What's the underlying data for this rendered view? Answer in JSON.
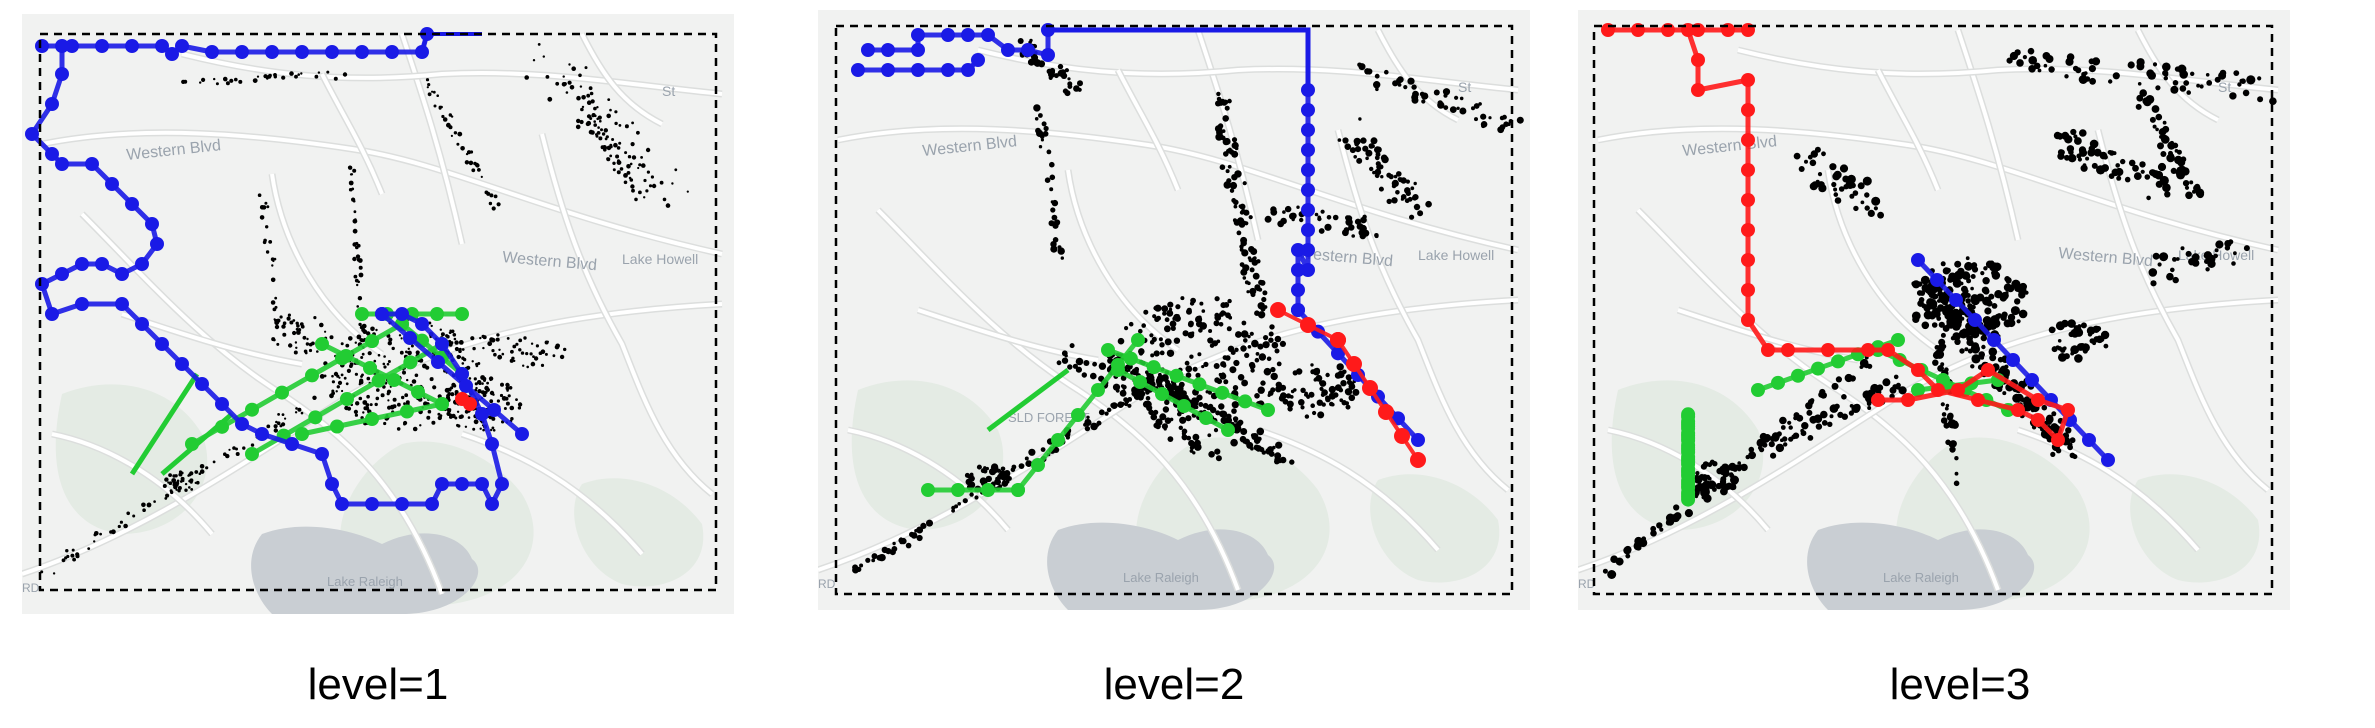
{
  "colors": {
    "map_bg": "#f1f2f1",
    "road": "#ffffff",
    "road_edge": "#dcdedd",
    "park": "#e4ebe4",
    "water": "#c9ced3",
    "map_text": "#9aa3ad",
    "blue": "#1a1ae6",
    "green": "#22cc33",
    "red": "#ff1a1a",
    "points": "#000000",
    "frame": "#000000"
  },
  "panels": [
    {
      "id": "level-1",
      "caption": "level=1",
      "map_labels": {
        "western_blvd": "Western Blvd",
        "western_blvd_2": "Western Blvd",
        "lake_howell": "Lake Howell",
        "lake_raleigh": "Lake Raleigh",
        "street": "St",
        "road_label": "RD",
        "forest": ""
      }
    },
    {
      "id": "level-2",
      "caption": "level=2",
      "map_labels": {
        "western_blvd": "Western Blvd",
        "western_blvd_2": "Western Blvd",
        "lake_howell": "Lake Howell",
        "lake_raleigh": "Lake Raleigh",
        "street": "St",
        "road_label": "RD",
        "forest": "SLD FOREST"
      }
    },
    {
      "id": "level-3",
      "caption": "level=3",
      "map_labels": {
        "western_blvd": "Western Blvd",
        "western_blvd_2": "Western Blvd",
        "lake_howell": "Lake Howell",
        "lake_raleigh": "Lake Raleigh",
        "street": "St",
        "road_label": "RD",
        "forest": ""
      }
    }
  ]
}
